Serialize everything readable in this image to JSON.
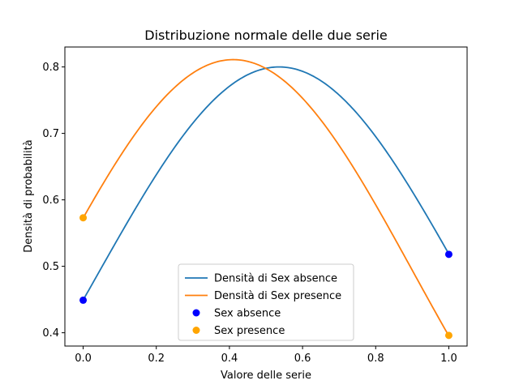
{
  "chart_data": {
    "type": "line",
    "title": "Distribuzione normale delle due serie",
    "xlabel": "Valore delle serie",
    "ylabel": "Densità di probabilità",
    "xlim": [
      -0.05,
      1.05
    ],
    "ylim": [
      0.38,
      0.83
    ],
    "xticks": [
      0.0,
      0.2,
      0.4,
      0.6,
      0.8,
      1.0
    ],
    "xtick_labels": [
      "0.0",
      "0.2",
      "0.4",
      "0.6",
      "0.8",
      "1.0"
    ],
    "yticks": [
      0.4,
      0.5,
      0.6,
      0.7,
      0.8
    ],
    "ytick_labels": [
      "0.4",
      "0.5",
      "0.6",
      "0.7",
      "0.8"
    ],
    "grid": false,
    "legend_position": "lower center",
    "series": [
      {
        "name": "Densità di Sex absence",
        "kind": "line",
        "color": "#1f77b4",
        "mean": 0.5357,
        "std": 0.4987,
        "x_range": [
          0,
          1
        ],
        "peak": 0.8
      },
      {
        "name": "Densità di Sex presence",
        "kind": "line",
        "color": "#ff7f0e",
        "mean": 0.4103,
        "std": 0.4919,
        "x_range": [
          0,
          1
        ],
        "peak": 0.811
      },
      {
        "name": "Sex absence",
        "kind": "scatter",
        "color": "#0000ff",
        "points": [
          [
            0,
            0.449
          ],
          [
            1,
            0.518
          ]
        ]
      },
      {
        "name": "Sex presence",
        "kind": "scatter",
        "color": "#ffa500",
        "points": [
          [
            0,
            0.573
          ],
          [
            1,
            0.396
          ]
        ]
      }
    ]
  }
}
